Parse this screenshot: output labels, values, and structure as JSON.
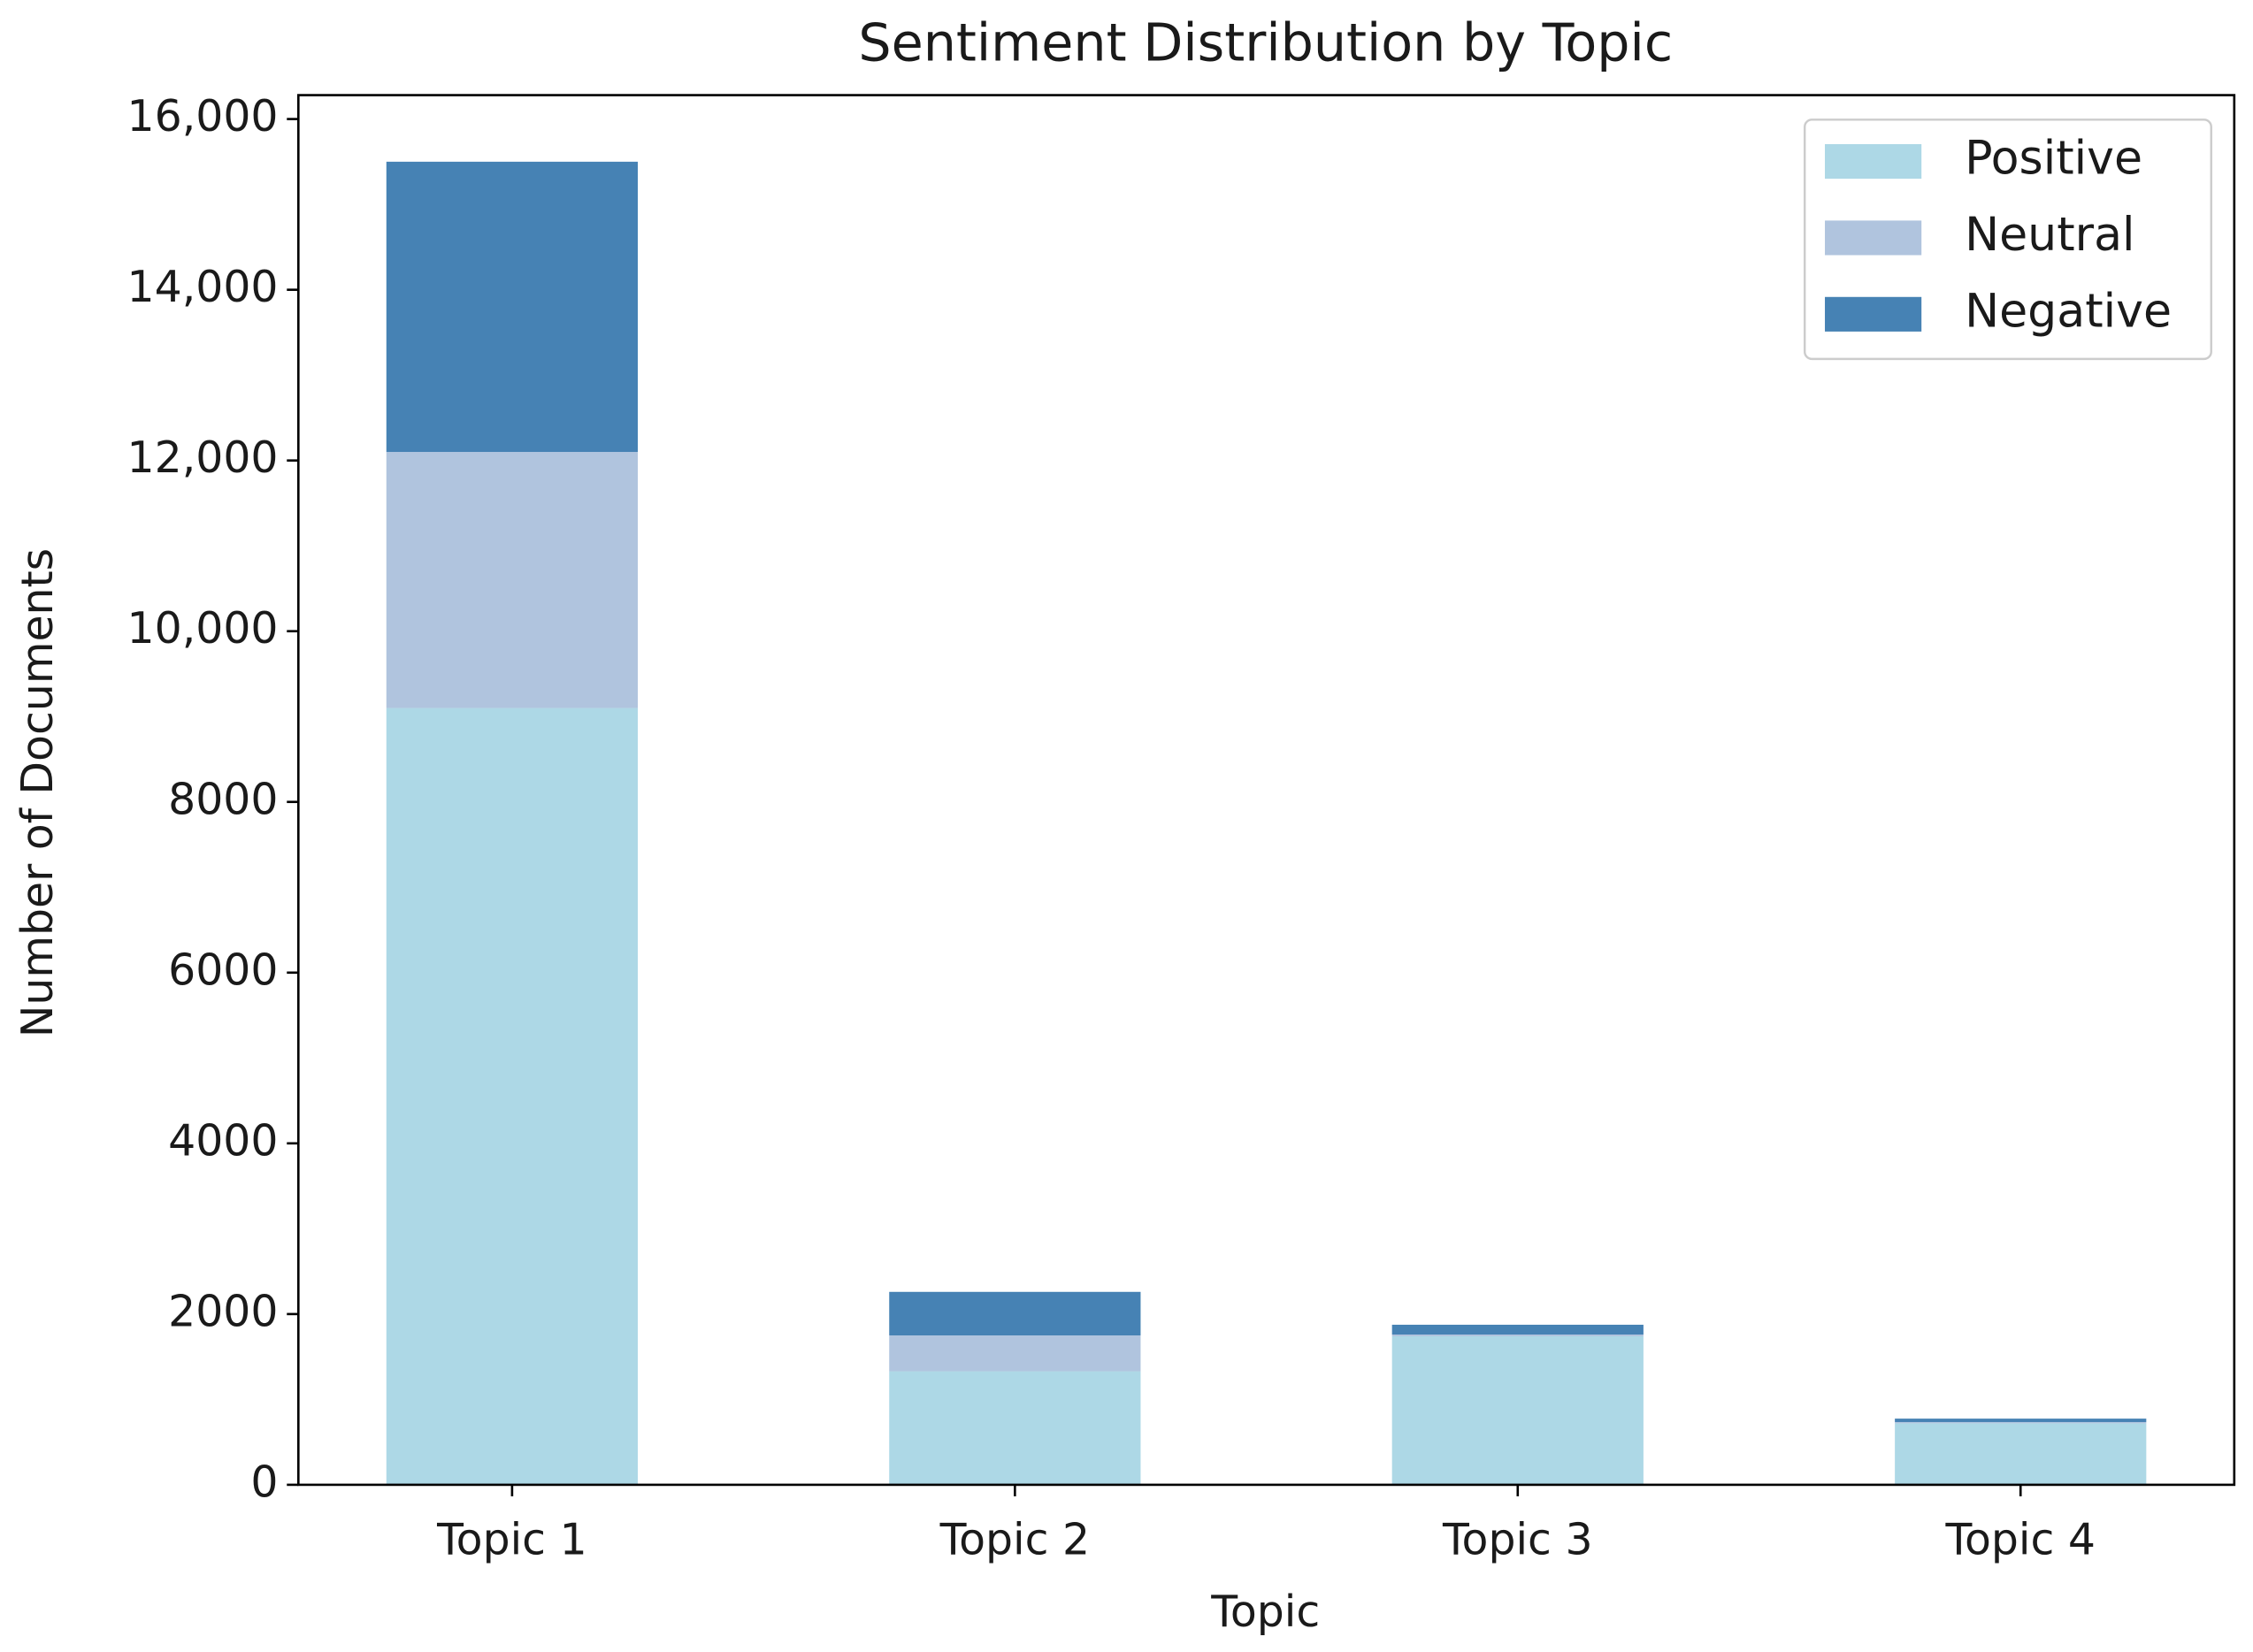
{
  "chart_data": {
    "type": "stacked_bar",
    "title": "Sentiment Distribution by Topic",
    "x_label": "Topic",
    "y_label": "Number of Documents",
    "categories": [
      "Topic 1",
      "Topic 2",
      "Topic 3",
      "Topic 4"
    ],
    "series": [
      {
        "name": "Positive",
        "color": "#add8e6",
        "values": [
          9100,
          1330,
          1740,
          720
        ]
      },
      {
        "name": "Neutral",
        "color": "#b0c4de",
        "values": [
          3000,
          420,
          20,
          15
        ]
      },
      {
        "name": "Negative",
        "color": "#4682b4",
        "values": [
          3400,
          510,
          115,
          40
        ]
      }
    ],
    "ylim": [
      0,
      16280
    ],
    "yticks": [
      0,
      2000,
      4000,
      6000,
      8000,
      {
        "value": 10000,
        "label": "10,000"
      },
      {
        "value": 12000,
        "label": "12,000"
      },
      {
        "value": 14000,
        "label": "14,000"
      },
      {
        "value": 16000,
        "label": "16,000"
      }
    ],
    "grid": false,
    "legend": "upper right"
  }
}
